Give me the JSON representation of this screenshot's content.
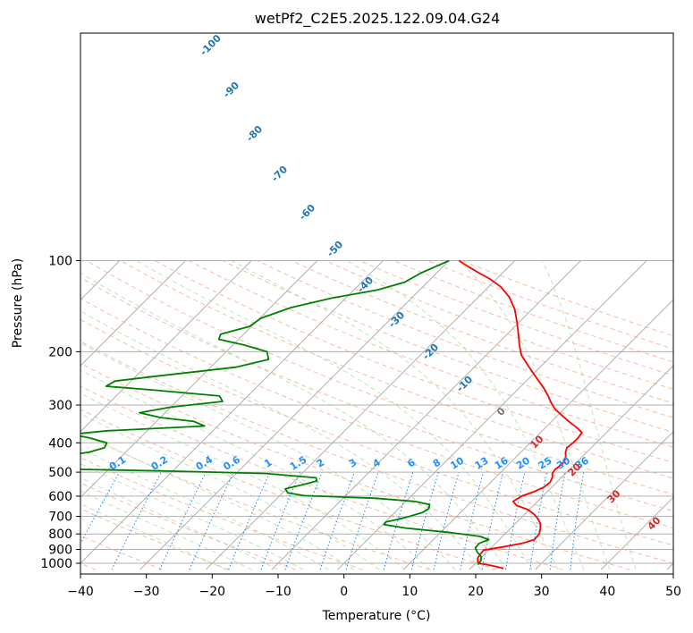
{
  "chart_data": {
    "type": "line",
    "subtype": "skew-T log-P diagram",
    "title": "wetPf2_C2E5.2025.122.09.04.G24",
    "xlabel": "Temperature (°C)",
    "ylabel": "Pressure (hPa)",
    "xlim": [
      -40,
      50
    ],
    "ylim_hpa": [
      1050,
      100
    ],
    "y_scale": "log",
    "x_ticks": [
      "−40",
      "−30",
      "−20",
      "−10",
      "0",
      "10",
      "20",
      "30",
      "40",
      "50"
    ],
    "y_ticks": [
      {
        "value": 100,
        "label": "100"
      },
      {
        "value": 200,
        "label": "200"
      },
      {
        "value": 300,
        "label": "300"
      },
      {
        "value": 400,
        "label": "400"
      },
      {
        "value": 500,
        "label": "500"
      },
      {
        "value": 600,
        "label": "600"
      },
      {
        "value": 700,
        "label": "700"
      },
      {
        "value": 800,
        "label": "800"
      },
      {
        "value": 900,
        "label": "900"
      },
      {
        "value": 1000,
        "label": "1000"
      }
    ],
    "grid": true,
    "series": [
      {
        "role": "temperature",
        "color": "#ff0000",
        "points": [
          [
            1040,
            25.0
          ],
          [
            1020,
            23.0
          ],
          [
            1000,
            20.5
          ],
          [
            985,
            20.0
          ],
          [
            960,
            19.5
          ],
          [
            930,
            19.3
          ],
          [
            905,
            19.2
          ],
          [
            880,
            22.0
          ],
          [
            860,
            24.0
          ],
          [
            835,
            25.3
          ],
          [
            800,
            25.2
          ],
          [
            770,
            24.6
          ],
          [
            740,
            23.8
          ],
          [
            715,
            22.8
          ],
          [
            690,
            21.5
          ],
          [
            665,
            19.8
          ],
          [
            645,
            17.5
          ],
          [
            625,
            16.3
          ],
          [
            600,
            16.8
          ],
          [
            580,
            18.0
          ],
          [
            560,
            18.8
          ],
          [
            540,
            19.0
          ],
          [
            520,
            18.6
          ],
          [
            505,
            18.0
          ],
          [
            490,
            17.8
          ],
          [
            475,
            18.0
          ],
          [
            460,
            18.0
          ],
          [
            445,
            17.5
          ],
          [
            430,
            16.8
          ],
          [
            415,
            16.3
          ],
          [
            400,
            16.5
          ],
          [
            385,
            16.5
          ],
          [
            370,
            16.3
          ],
          [
            355,
            14.6
          ],
          [
            340,
            12.6
          ],
          [
            325,
            10.7
          ],
          [
            310,
            8.7
          ],
          [
            295,
            7.1
          ],
          [
            280,
            5.6
          ],
          [
            265,
            3.9
          ],
          [
            250,
            1.9
          ],
          [
            235,
            -0.2
          ],
          [
            220,
            -2.4
          ],
          [
            205,
            -4.7
          ],
          [
            190,
            -6.5
          ],
          [
            175,
            -8.3
          ],
          [
            160,
            -10.3
          ],
          [
            145,
            -12.6
          ],
          [
            132,
            -15.3
          ],
          [
            122,
            -18.2
          ],
          [
            115,
            -21.0
          ],
          [
            110,
            -23.5
          ],
          [
            105,
            -26.0
          ],
          [
            100,
            -28.5
          ]
        ]
      },
      {
        "role": "dewpoint",
        "color": "#008000",
        "points": [
          [
            1010,
            20.5
          ],
          [
            980,
            20.4
          ],
          [
            950,
            19.8
          ],
          [
            920,
            18.6
          ],
          [
            890,
            17.6
          ],
          [
            860,
            17.5
          ],
          [
            835,
            18.4
          ],
          [
            815,
            16.5
          ],
          [
            790,
            11.0
          ],
          [
            765,
            4.0
          ],
          [
            745,
            0.2
          ],
          [
            730,
            0.1
          ],
          [
            715,
            1.6
          ],
          [
            700,
            2.8
          ],
          [
            680,
            4.2
          ],
          [
            660,
            4.6
          ],
          [
            640,
            4.1
          ],
          [
            625,
            1.4
          ],
          [
            610,
            -5.0
          ],
          [
            598,
            -16.3
          ],
          [
            585,
            -19.2
          ],
          [
            568,
            -20.2
          ],
          [
            550,
            -18.2
          ],
          [
            535,
            -16.6
          ],
          [
            522,
            -17.2
          ],
          [
            505,
            -25.5
          ],
          [
            495,
            -42.0
          ],
          [
            482,
            -72.0
          ],
          [
            472,
            -68.0
          ],
          [
            462,
            -64.0
          ],
          [
            445,
            -60.0
          ],
          [
            430,
            -55.6
          ],
          [
            415,
            -53.9
          ],
          [
            400,
            -54.3
          ],
          [
            385,
            -57.7
          ],
          [
            375,
            -61.0
          ],
          [
            365,
            -56.0
          ],
          [
            352,
            -42.0
          ],
          [
            340,
            -44.3
          ],
          [
            330,
            -50.0
          ],
          [
            318,
            -53.9
          ],
          [
            305,
            -50.0
          ],
          [
            292,
            -43.0
          ],
          [
            280,
            -44.3
          ],
          [
            268,
            -55.0
          ],
          [
            260,
            -63.0
          ],
          [
            250,
            -62.4
          ],
          [
            240,
            -56.3
          ],
          [
            225,
            -46.2
          ],
          [
            212,
            -42.4
          ],
          [
            200,
            -43.8
          ],
          [
            190,
            -48.3
          ],
          [
            182,
            -53.0
          ],
          [
            175,
            -53.5
          ],
          [
            165,
            -50.3
          ],
          [
            155,
            -49.8
          ],
          [
            143,
            -46.9
          ],
          [
            133,
            -42.1
          ],
          [
            125,
            -36.4
          ],
          [
            118,
            -33.5
          ],
          [
            110,
            -32.4
          ],
          [
            104,
            -31.0
          ],
          [
            100,
            -30.0
          ]
        ]
      }
    ],
    "reference_lines": {
      "mixing_ratio_labels": [
        "0.1",
        "0.2",
        "0.4",
        "0.6",
        "1",
        "1.5",
        "2",
        "3",
        "4",
        "6",
        "8",
        "10",
        "13",
        "16",
        "20",
        "25",
        "30",
        "36"
      ],
      "mixing_ratio_values": [
        0.1,
        0.2,
        0.4,
        0.6,
        1,
        1.5,
        2,
        3,
        4,
        6,
        8,
        10,
        13,
        16,
        20,
        25,
        30,
        36
      ],
      "dry_adiabat_labels": [
        "-100",
        "-90",
        "-80",
        "-70",
        "-60",
        "-50",
        "-40",
        "-30",
        "-20",
        "-10"
      ],
      "moist_adiabat_labels": [
        "0",
        "10",
        "20",
        "30",
        "40"
      ]
    },
    "colors": {
      "isotherm": "#b0b0b0",
      "isobar": "#b0b0b0",
      "dry_adiabat": "#f4a582",
      "moist_adiabat": "#a6d9a0",
      "mixing_ratio": "#1e88e5",
      "dry_label": "#1f77b4",
      "moist_label_zero": "#777777",
      "moist_label": "#d62728",
      "curve_temperature": "#ff0000",
      "curve_dewpoint": "#008000"
    }
  }
}
